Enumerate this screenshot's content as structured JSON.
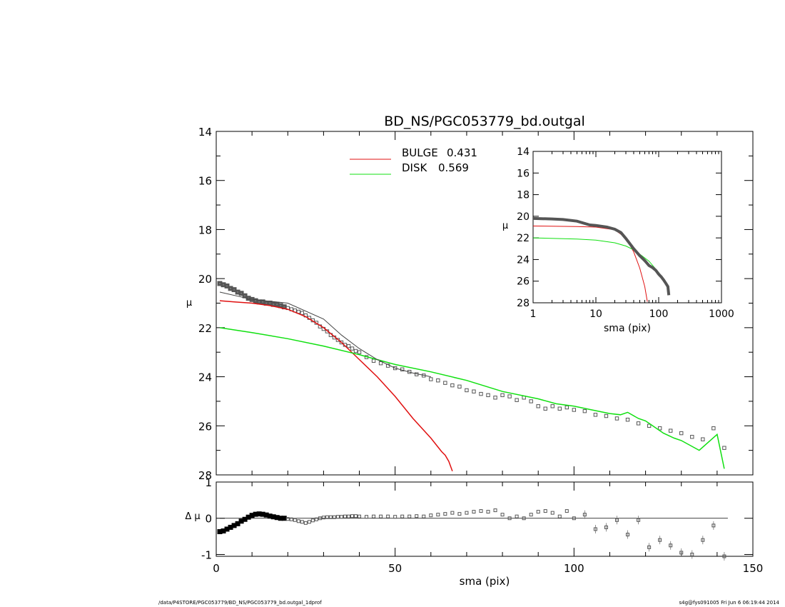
{
  "footer": {
    "left": "/data/P4STORE/PGC053779/BD_NS/PGC053779_bd.outgal_1dprof",
    "right": "s4g@fys091005  Fri Jun  6 06:19:44 2014"
  },
  "colors": {
    "bulge": "#e01010",
    "disk": "#10e010",
    "data": "#555555",
    "total": "#444444"
  },
  "chart_data": [
    {
      "id": "main",
      "type": "line",
      "title": "BD_NS/PGC053779_bd.outgal",
      "ylabel": "μ",
      "xlim": [
        0,
        150
      ],
      "ylim": [
        28,
        14
      ],
      "yticks": [
        14,
        16,
        18,
        20,
        22,
        24,
        26,
        28
      ],
      "legend": [
        {
          "name": "BULGE",
          "value": "0.431",
          "color": "#e01010"
        },
        {
          "name": "DISK",
          "value": "0.569",
          "color": "#10e010"
        }
      ],
      "series": [
        {
          "name": "BULGE",
          "color": "#e01010",
          "x": [
            1,
            5,
            10,
            15,
            20,
            25,
            30,
            35,
            40,
            45,
            50,
            55,
            60,
            63,
            64,
            65,
            66
          ],
          "y": [
            20.9,
            20.95,
            21.0,
            21.1,
            21.25,
            21.55,
            22.0,
            22.6,
            23.3,
            24.0,
            24.8,
            25.7,
            26.5,
            27.05,
            27.2,
            27.45,
            27.85
          ]
        },
        {
          "name": "DISK",
          "color": "#10e010",
          "x": [
            1,
            10,
            20,
            30,
            40,
            50,
            60,
            70,
            80,
            90,
            95,
            100,
            105,
            110,
            113,
            115,
            118,
            120,
            122,
            125,
            128,
            130,
            135,
            140,
            142
          ],
          "y": [
            22.0,
            22.2,
            22.45,
            22.75,
            23.1,
            23.5,
            23.8,
            24.15,
            24.6,
            24.9,
            25.1,
            25.2,
            25.35,
            25.5,
            25.55,
            25.45,
            25.7,
            25.8,
            26.0,
            26.3,
            26.5,
            26.6,
            27.0,
            26.35,
            27.75
          ]
        },
        {
          "name": "total",
          "color": "#444444",
          "x": [
            1,
            10,
            20,
            30,
            35,
            40,
            45,
            50,
            55,
            60
          ],
          "y": [
            20.55,
            20.85,
            21.0,
            21.65,
            22.3,
            22.85,
            23.3,
            23.65,
            23.85,
            24.0
          ]
        }
      ],
      "points": {
        "x": [
          1,
          2,
          3,
          4,
          5,
          6,
          7,
          8,
          9,
          10,
          11,
          12,
          13,
          14,
          15,
          16,
          17,
          18,
          19,
          20,
          21,
          22,
          23,
          24,
          25,
          26,
          27,
          28,
          29,
          30,
          31,
          32,
          33,
          34,
          35,
          36,
          37,
          38,
          39,
          40,
          42,
          44,
          46,
          48,
          50,
          52,
          54,
          56,
          58,
          60,
          62,
          64,
          66,
          68,
          70,
          72,
          74,
          76,
          78,
          80,
          82,
          84,
          86,
          88,
          90,
          92,
          94,
          96,
          98,
          100,
          103,
          106,
          109,
          112,
          115,
          118,
          121,
          124,
          127,
          130,
          133,
          136,
          139,
          142
        ],
        "y": [
          20.2,
          20.25,
          20.3,
          20.4,
          20.45,
          20.55,
          20.6,
          20.7,
          20.8,
          20.85,
          20.9,
          20.95,
          20.95,
          21.0,
          21.0,
          21.05,
          21.05,
          21.1,
          21.15,
          21.2,
          21.25,
          21.3,
          21.35,
          21.4,
          21.5,
          21.6,
          21.7,
          21.8,
          21.95,
          22.05,
          22.15,
          22.3,
          22.4,
          22.5,
          22.6,
          22.7,
          22.75,
          22.85,
          22.95,
          23.0,
          23.2,
          23.35,
          23.45,
          23.55,
          23.65,
          23.7,
          23.8,
          23.9,
          23.95,
          24.1,
          24.15,
          24.25,
          24.35,
          24.4,
          24.55,
          24.6,
          24.7,
          24.75,
          24.85,
          24.75,
          24.8,
          24.95,
          24.85,
          25.0,
          25.2,
          25.3,
          25.2,
          25.3,
          25.25,
          25.35,
          25.4,
          25.55,
          25.6,
          25.7,
          25.75,
          25.9,
          26.0,
          26.1,
          26.2,
          26.3,
          26.45,
          26.55,
          26.1,
          26.9
        ]
      }
    },
    {
      "id": "inset",
      "type": "line",
      "xlabel": "sma (pix)",
      "ylabel": "μ",
      "xscale": "log",
      "xlim": [
        1,
        1000
      ],
      "xticks": [
        1,
        10,
        100,
        1000
      ],
      "ylim": [
        28,
        14
      ],
      "yticks": [
        14,
        16,
        18,
        20,
        22,
        24,
        26,
        28
      ],
      "series": [
        {
          "name": "BULGE",
          "color": "#e01010",
          "x": [
            1,
            5,
            10,
            20,
            30,
            40,
            50,
            60,
            66
          ],
          "y": [
            20.9,
            20.95,
            21.0,
            21.25,
            22.0,
            23.3,
            24.8,
            26.5,
            27.9
          ]
        },
        {
          "name": "DISK",
          "color": "#10e010",
          "x": [
            1,
            5,
            10,
            20,
            30,
            40,
            50,
            70,
            100,
            120,
            140
          ],
          "y": [
            22.0,
            22.1,
            22.2,
            22.45,
            22.75,
            23.1,
            23.5,
            24.15,
            25.2,
            25.8,
            26.35
          ]
        },
        {
          "name": "data",
          "color": "#555555",
          "x": [
            1,
            2,
            3,
            5,
            8,
            10,
            15,
            20,
            25,
            30,
            40,
            50,
            60,
            70,
            80,
            90,
            100,
            110,
            120,
            130,
            140,
            145
          ],
          "y": [
            20.2,
            20.25,
            20.3,
            20.45,
            20.8,
            20.85,
            21.0,
            21.2,
            21.5,
            22.05,
            23.0,
            23.65,
            24.1,
            24.55,
            24.75,
            25.0,
            25.35,
            25.6,
            25.9,
            26.2,
            26.5,
            27.3
          ]
        }
      ]
    },
    {
      "id": "residual",
      "type": "scatter",
      "xlabel": "sma (pix)",
      "ylabel": "Δ μ",
      "xlim": [
        0,
        150
      ],
      "xticks": [
        0,
        50,
        100,
        150
      ],
      "ylim": [
        -1.05,
        1.0
      ],
      "yticks": [
        -1,
        0,
        1
      ],
      "zero_line": true,
      "points": {
        "x": [
          1,
          2,
          3,
          4,
          5,
          6,
          7,
          8,
          9,
          10,
          11,
          12,
          13,
          14,
          15,
          16,
          17,
          18,
          19,
          20,
          21,
          22,
          23,
          24,
          25,
          26,
          27,
          28,
          29,
          30,
          31,
          32,
          33,
          34,
          35,
          36,
          37,
          38,
          39,
          40,
          42,
          44,
          46,
          48,
          50,
          52,
          54,
          56,
          58,
          60,
          62,
          64,
          66,
          68,
          70,
          72,
          74,
          76,
          78,
          80,
          82,
          84,
          86,
          88,
          90,
          92,
          94,
          96,
          98,
          100,
          103,
          106,
          109,
          112,
          115,
          118,
          121,
          124,
          127,
          130,
          133,
          136,
          139,
          142
        ],
        "y": [
          -0.37,
          -0.35,
          -0.3,
          -0.25,
          -0.2,
          -0.15,
          -0.08,
          -0.03,
          0.03,
          0.08,
          0.11,
          0.12,
          0.11,
          0.09,
          0.06,
          0.04,
          0.02,
          0.0,
          0.0,
          -0.02,
          -0.03,
          -0.05,
          -0.08,
          -0.1,
          -0.13,
          -0.1,
          -0.06,
          -0.03,
          0.0,
          0.02,
          0.03,
          0.03,
          0.03,
          0.04,
          0.04,
          0.05,
          0.05,
          0.06,
          0.06,
          0.05,
          0.04,
          0.05,
          0.05,
          0.05,
          0.04,
          0.05,
          0.05,
          0.06,
          0.05,
          0.08,
          0.1,
          0.12,
          0.15,
          0.12,
          0.15,
          0.18,
          0.2,
          0.18,
          0.22,
          0.1,
          0.0,
          0.05,
          0.0,
          0.1,
          0.18,
          0.2,
          0.15,
          0.05,
          0.2,
          0.0,
          0.1,
          -0.3,
          -0.25,
          -0.05,
          -0.45,
          -0.05,
          -0.8,
          -0.6,
          -0.75,
          -0.95,
          -1.0,
          -0.6,
          -0.2,
          -1.05
        ]
      }
    }
  ]
}
